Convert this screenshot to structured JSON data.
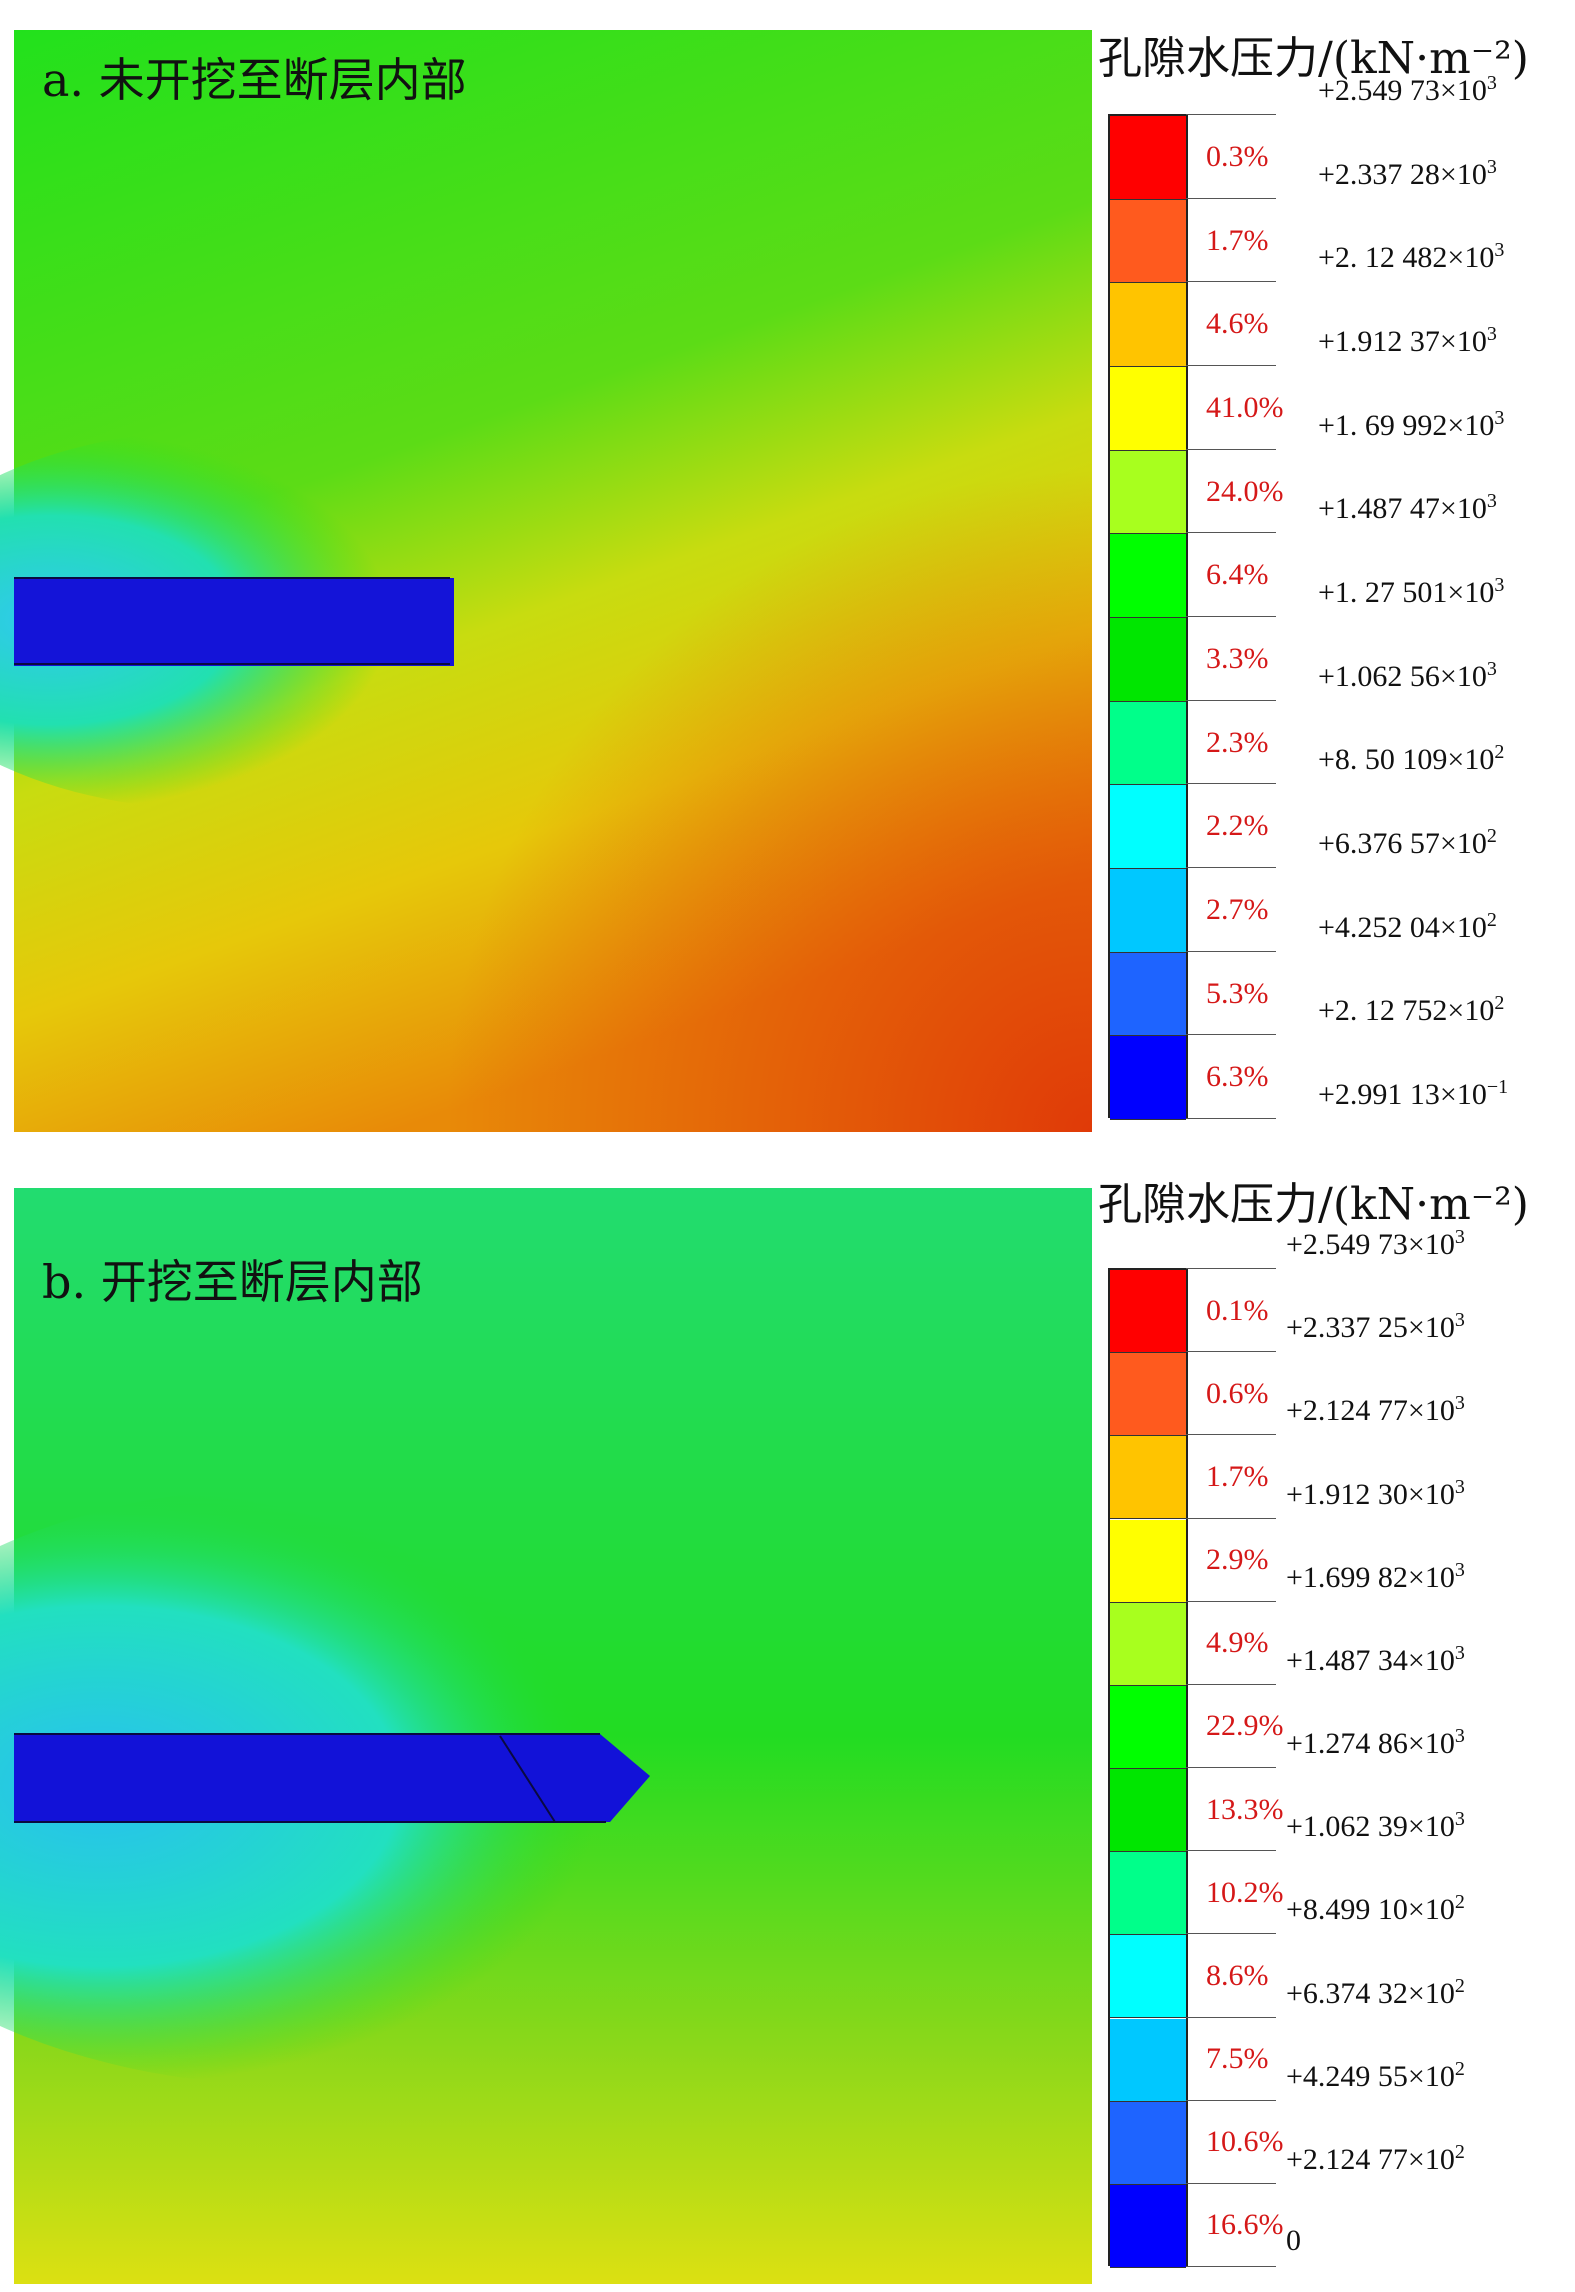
{
  "panels": [
    {
      "id": "a",
      "label": "a. 未开挖至断层内部",
      "legend_title": "孔隙水压力/(kN·m⁻²)",
      "band_colors": [
        "#ff0000",
        "#ff5a1e",
        "#ffc400",
        "#ffff00",
        "#a8ff1e",
        "#00ff00",
        "#00e600",
        "#00ff8a",
        "#00ffff",
        "#00c8ff",
        "#1e64ff",
        "#0000ff"
      ],
      "percentages": [
        "0.3%",
        "1.7%",
        "4.6%",
        "41.0%",
        "24.0%",
        "6.4%",
        "3.3%",
        "2.3%",
        "2.2%",
        "2.7%",
        "5.3%",
        "6.3%"
      ],
      "values": [
        {
          "mant": "+2.549 73×10",
          "exp": "3"
        },
        {
          "mant": "+2.337 28×10",
          "exp": "3"
        },
        {
          "mant": "+2. 12 482×10",
          "exp": "3"
        },
        {
          "mant": "+1.912 37×10",
          "exp": "3"
        },
        {
          "mant": "+1. 69 992×10",
          "exp": "3"
        },
        {
          "mant": "+1.487 47×10",
          "exp": "3"
        },
        {
          "mant": "+1. 27 501×10",
          "exp": "3"
        },
        {
          "mant": "+1.062 56×10",
          "exp": "3"
        },
        {
          "mant": "+8. 50 109×10",
          "exp": "2"
        },
        {
          "mant": "+6.376 57×10",
          "exp": "2"
        },
        {
          "mant": "+4.252 04×10",
          "exp": "2"
        },
        {
          "mant": "+2. 12 752×10",
          "exp": "2"
        },
        {
          "mant": "+2.991 13×10",
          "exp": "−1"
        }
      ]
    },
    {
      "id": "b",
      "label": "b. 开挖至断层内部",
      "legend_title": "孔隙水压力/(kN·m⁻²)",
      "band_colors": [
        "#ff0000",
        "#ff5a1e",
        "#ffc400",
        "#ffff00",
        "#a8ff1e",
        "#00ff00",
        "#00e600",
        "#00ff8a",
        "#00ffff",
        "#00c8ff",
        "#1e64ff",
        "#0000ff"
      ],
      "percentages": [
        "0.1%",
        "0.6%",
        "1.7%",
        "2.9%",
        "4.9%",
        "22.9%",
        "13.3%",
        "10.2%",
        "8.6%",
        "7.5%",
        "10.6%",
        "16.6%"
      ],
      "values": [
        {
          "mant": "+2.549 73×10",
          "exp": "3"
        },
        {
          "mant": "+2.337 25×10",
          "exp": "3"
        },
        {
          "mant": "+2.124 77×10",
          "exp": "3"
        },
        {
          "mant": "+1.912 30×10",
          "exp": "3"
        },
        {
          "mant": "+1.699 82×10",
          "exp": "3"
        },
        {
          "mant": "+1.487 34×10",
          "exp": "3"
        },
        {
          "mant": "+1.274 86×10",
          "exp": "3"
        },
        {
          "mant": "+1.062 39×10",
          "exp": "3"
        },
        {
          "mant": "+8.499 10×10",
          "exp": "2"
        },
        {
          "mant": "+6.374 32×10",
          "exp": "2"
        },
        {
          "mant": "+4.249 55×10",
          "exp": "2"
        },
        {
          "mant": "+2.124 77×10",
          "exp": "2"
        },
        {
          "mant": "0",
          "exp": ""
        }
      ]
    }
  ]
}
